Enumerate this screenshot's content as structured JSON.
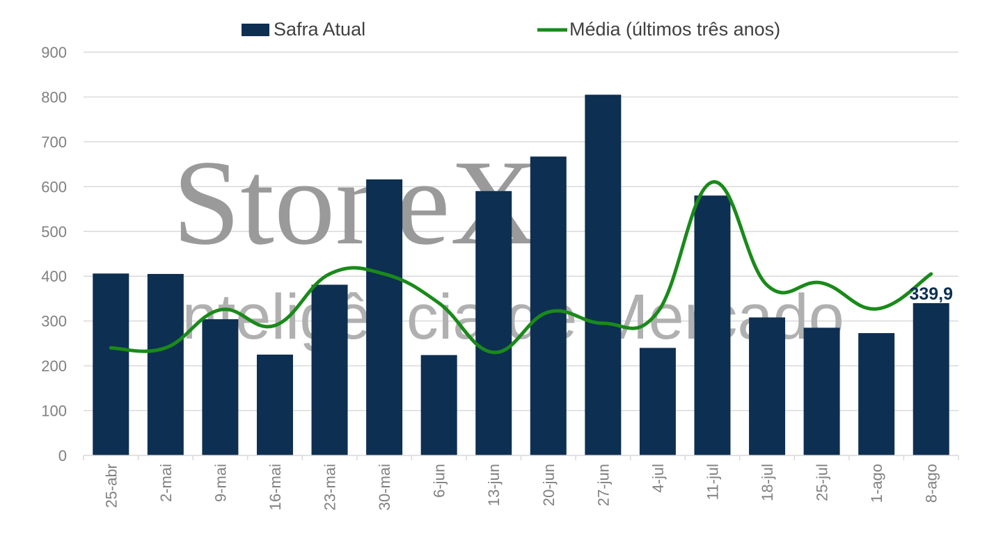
{
  "watermark": {
    "brand": "StoneX",
    "tagline": "Inteligência de Mercado"
  },
  "legend": {
    "bar_label": "Safra Atual",
    "line_label": "Média (últimos três anos)"
  },
  "colors": {
    "bar": "#0d2f52",
    "line": "#1a8a1a",
    "grid": "#d9d9d9",
    "axis_text": "#808080"
  },
  "chart_data": {
    "type": "bar",
    "categories": [
      "25-abr",
      "2-mai",
      "9-mai",
      "16-mai",
      "23-mai",
      "30-mai",
      "6-jun",
      "13-jun",
      "20-jun",
      "27-jun",
      "4-jul",
      "11-jul",
      "18-jul",
      "25-jul",
      "1-ago",
      "8-ago"
    ],
    "series": [
      {
        "name": "Safra Atual",
        "kind": "bar",
        "values": [
          406,
          405,
          304,
          225,
          381,
          616,
          224,
          590,
          667,
          805,
          240,
          580,
          308,
          285,
          273,
          339.9
        ]
      },
      {
        "name": "Média (últimos três anos)",
        "kind": "line",
        "smooth": true,
        "values": [
          240,
          240,
          325,
          290,
          405,
          405,
          340,
          230,
          320,
          295,
          320,
          610,
          380,
          385,
          327,
          405
        ]
      }
    ],
    "data_labels": [
      {
        "category": "8-ago",
        "text": "339,9"
      }
    ],
    "ylim": [
      0,
      900
    ],
    "yticks": [
      0,
      100,
      200,
      300,
      400,
      500,
      600,
      700,
      800,
      900
    ],
    "grid": true,
    "legend_position": "top"
  }
}
